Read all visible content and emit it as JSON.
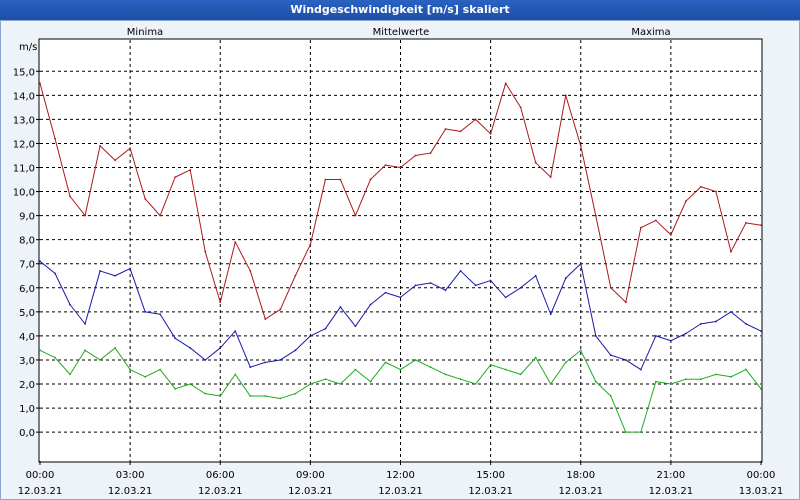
{
  "chart_data": {
    "type": "line",
    "title": "Windgeschwindigkeit [m/s] skaliert",
    "ylabel": "m/s",
    "ylim": [
      -1.2,
      16.3
    ],
    "yticks": [
      "15,0",
      "14,0",
      "13,0",
      "12,0",
      "11,0",
      "10,0",
      "9,0",
      "8,0",
      "7,0",
      "6,0",
      "5,0",
      "4,0",
      "3,0",
      "2,0",
      "1,0",
      "0,0"
    ],
    "ytick_values": [
      15,
      14,
      13,
      12,
      11,
      10,
      9,
      8,
      7,
      6,
      5,
      4,
      3,
      2,
      1,
      0
    ],
    "xlim": [
      0,
      24
    ],
    "xticks": [
      {
        "h": 0,
        "time": "00:00",
        "date": "12.03.21"
      },
      {
        "h": 3,
        "time": "03:00",
        "date": "12.03.21"
      },
      {
        "h": 6,
        "time": "06:00",
        "date": "12.03.21"
      },
      {
        "h": 9,
        "time": "09:00",
        "date": "12.03.21"
      },
      {
        "h": 12,
        "time": "12:00",
        "date": "12.03.21"
      },
      {
        "h": 15,
        "time": "15:00",
        "date": "12.03.21"
      },
      {
        "h": 18,
        "time": "18:00",
        "date": "12.03.21"
      },
      {
        "h": 21,
        "time": "21:00",
        "date": "12.03.21"
      },
      {
        "h": 24,
        "time": "00:00",
        "date": "13.03.21"
      }
    ],
    "grid": true,
    "x_hours": [
      0,
      0.5,
      1,
      1.5,
      2,
      2.5,
      3,
      3.5,
      4,
      4.5,
      5,
      5.5,
      6,
      6.5,
      7,
      7.5,
      8,
      8.5,
      9,
      9.5,
      10,
      10.5,
      11,
      11.5,
      12,
      12.5,
      13,
      13.5,
      14,
      14.5,
      15,
      15.5,
      16,
      16.5,
      17,
      17.5,
      18,
      18.5,
      19,
      19.5,
      20,
      20.5,
      21,
      21.5,
      22,
      22.5,
      23,
      23.5,
      24
    ],
    "series": [
      {
        "name": "Minima",
        "color": "#22aa22",
        "values": [
          3.4,
          3.1,
          2.4,
          3.4,
          3.0,
          3.5,
          2.6,
          2.3,
          2.6,
          1.8,
          2.0,
          1.6,
          1.5,
          2.4,
          1.5,
          1.5,
          1.4,
          1.6,
          2.0,
          2.2,
          2.0,
          2.6,
          2.1,
          2.9,
          2.6,
          3.0,
          2.7,
          2.4,
          2.2,
          2.0,
          2.8,
          2.6,
          2.4,
          3.1,
          2.0,
          2.9,
          3.4,
          2.1,
          1.5,
          0.0,
          0.0,
          2.1,
          2.0,
          2.2,
          2.2,
          2.4,
          2.3,
          2.6,
          1.8
        ]
      },
      {
        "name": "Mittelwerte",
        "color": "#1a1aa8",
        "values": [
          7.1,
          6.6,
          5.3,
          4.5,
          6.7,
          6.5,
          6.8,
          5.0,
          4.9,
          3.9,
          3.5,
          3.0,
          3.5,
          4.2,
          2.7,
          2.9,
          3.0,
          3.4,
          4.0,
          4.3,
          5.2,
          4.4,
          5.3,
          5.8,
          5.6,
          6.1,
          6.2,
          5.9,
          6.7,
          6.1,
          6.3,
          5.6,
          6.0,
          6.5,
          4.9,
          6.4,
          7.0,
          4.0,
          3.2,
          3.0,
          2.6,
          4.0,
          3.8,
          4.1,
          4.5,
          4.6,
          5.0,
          4.5,
          4.2
        ]
      },
      {
        "name": "Maxima",
        "color": "#aa1a1a",
        "values": [
          14.5,
          12.2,
          9.8,
          9.0,
          11.9,
          11.3,
          11.8,
          9.7,
          9.0,
          10.6,
          10.9,
          7.5,
          5.4,
          7.9,
          6.7,
          4.7,
          5.1,
          6.5,
          7.8,
          10.5,
          10.5,
          9.0,
          10.5,
          11.1,
          11.0,
          11.5,
          11.6,
          12.6,
          12.5,
          13.0,
          12.4,
          14.5,
          13.5,
          11.2,
          10.6,
          14.0,
          11.9,
          9.0,
          6.0,
          5.4,
          8.5,
          8.8,
          8.2,
          9.6,
          10.2,
          10.0,
          7.5,
          8.7,
          8.6
        ]
      }
    ]
  }
}
